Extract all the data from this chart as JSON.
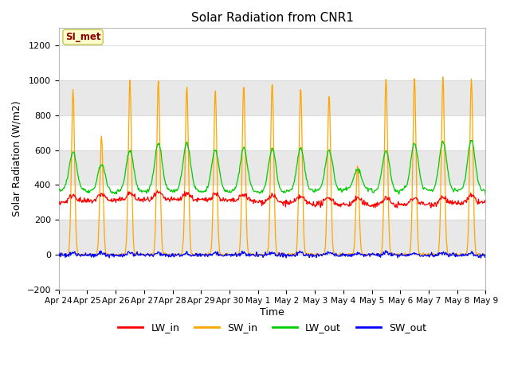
{
  "title": "Solar Radiation from CNR1",
  "xlabel": "Time",
  "ylabel": "Solar Radiation (W/m2)",
  "ylim": [
    -200,
    1300
  ],
  "yticks": [
    -200,
    0,
    200,
    400,
    600,
    800,
    1000,
    1200
  ],
  "xtick_labels": [
    "Apr 24",
    "Apr 25",
    "Apr 26",
    "Apr 27",
    "Apr 28",
    "Apr 29",
    "Apr 30",
    "May 1",
    "May 2",
    "May 3",
    "May 4",
    "May 5",
    "May 6",
    "May 7",
    "May 8",
    "May 9"
  ],
  "annotation_text": "SI_met",
  "annotation_color": "#8B0000",
  "annotation_bg": "#FFFFCC",
  "annotation_edge": "#CCCC66",
  "line_colors": {
    "LW_in": "#FF0000",
    "SW_in": "#FFA500",
    "LW_out": "#00CC00",
    "SW_out": "#0000FF"
  },
  "legend_labels": [
    "LW_in",
    "SW_in",
    "LW_out",
    "SW_out"
  ],
  "fig_bg_color": "#FFFFFF",
  "plot_bg_color": "#FFFFFF",
  "band_color": "#E8E8E8",
  "grid_color": "#DDDDDD",
  "figsize": [
    6.4,
    4.8
  ],
  "dpi": 100,
  "n_days": 15,
  "sw_peaks": [
    950,
    680,
    1000,
    1000,
    970,
    950,
    970,
    990,
    960,
    920,
    510,
    1010,
    1010,
    1020,
    1010
  ],
  "lo_peaks": [
    590,
    520,
    600,
    640,
    640,
    600,
    610,
    610,
    610,
    600,
    490,
    600,
    640,
    650,
    660
  ]
}
